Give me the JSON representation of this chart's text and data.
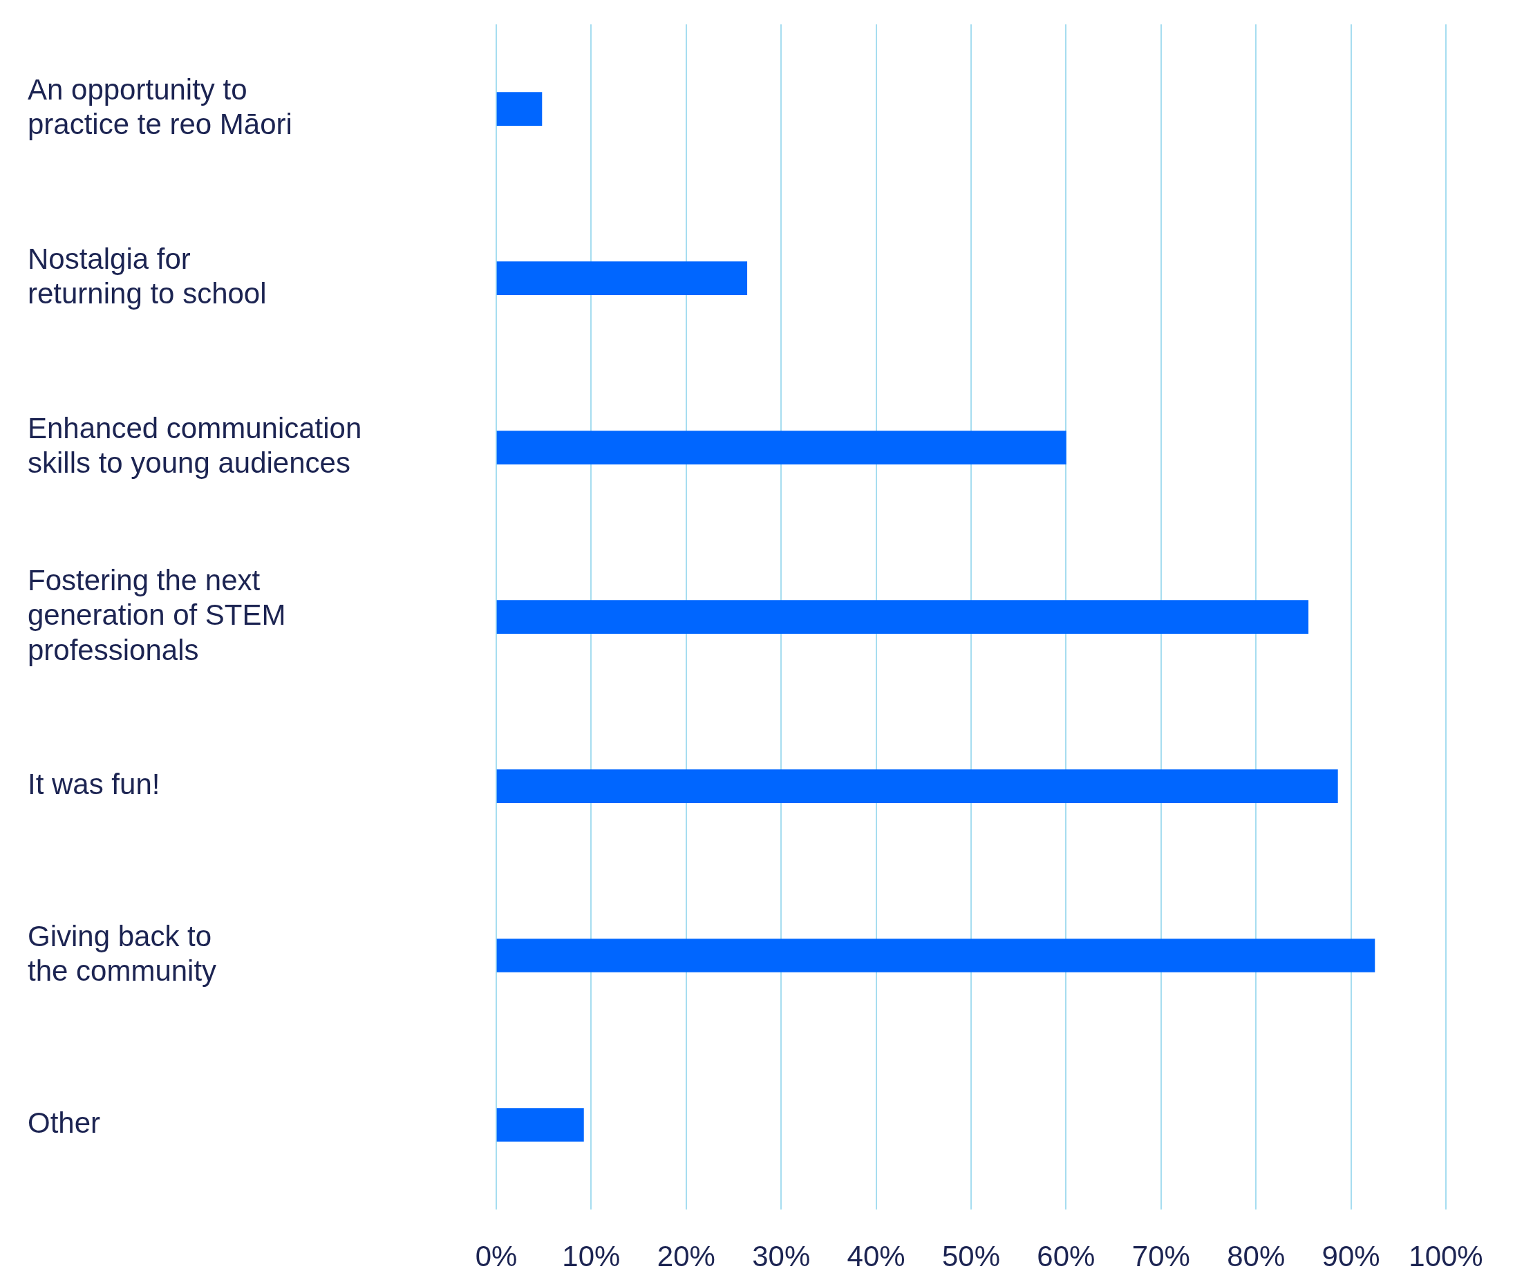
{
  "chart_data": {
    "type": "bar",
    "orientation": "horizontal",
    "categories": [
      "An opportunity to\npractice te reo Māori",
      "Nostalgia for\nreturning to school",
      "Enhanced communication\nskills to young audiences",
      "Fostering the next\ngeneration of STEM\nprofessionals",
      "It was fun!",
      "Giving back to\nthe community",
      "Other"
    ],
    "values": [
      4.8,
      26.4,
      60,
      85.5,
      88.6,
      92.5,
      9.2
    ],
    "color": "#0066ff",
    "xlim": [
      0,
      100
    ],
    "xticks": [
      {
        "value": 0,
        "label": "0%"
      },
      {
        "value": 10,
        "label": "10%"
      },
      {
        "value": 20,
        "label": "20%"
      },
      {
        "value": 30,
        "label": "30%"
      },
      {
        "value": 40,
        "label": "40%"
      },
      {
        "value": 50,
        "label": "50%"
      },
      {
        "value": 60,
        "label": "60%"
      },
      {
        "value": 70,
        "label": "70%"
      },
      {
        "value": 80,
        "label": "80%"
      },
      {
        "value": 90,
        "label": "90%"
      },
      {
        "value": 100,
        "label": "100%"
      }
    ],
    "grid": "x",
    "legend": false
  }
}
